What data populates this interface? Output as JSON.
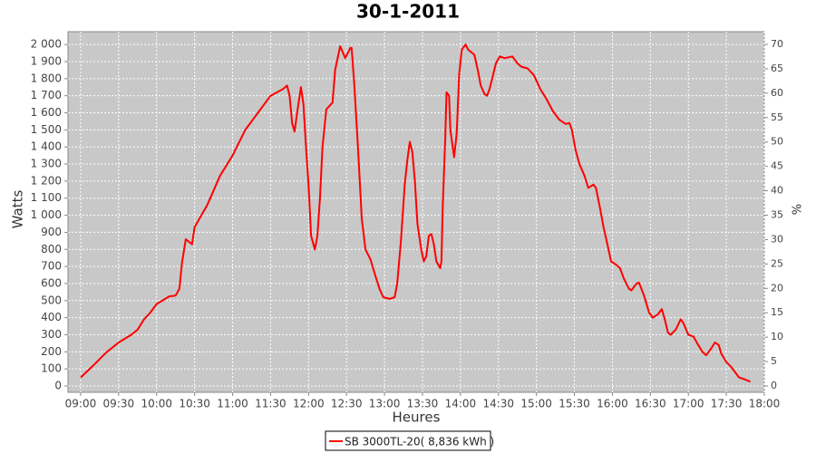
{
  "chart_data": {
    "type": "line",
    "title": "30-1-2011",
    "x_label": "Heures",
    "y_label": "Watts",
    "y2_label": "%",
    "xlim": [
      "08:50",
      "18:00"
    ],
    "xticks": [
      "09:00",
      "09:30",
      "10:00",
      "10:30",
      "11:00",
      "11:30",
      "12:00",
      "12:30",
      "13:00",
      "13:30",
      "14:00",
      "14:30",
      "15:00",
      "15:30",
      "16:00",
      "16:30",
      "17:00",
      "17:30",
      "18:00"
    ],
    "ylim": [
      -37,
      2075
    ],
    "yticks": [
      0,
      100,
      200,
      300,
      400,
      500,
      600,
      700,
      800,
      900,
      {
        "value": 1000,
        "label": "1 000"
      },
      {
        "value": 1100,
        "label": "1 100"
      },
      {
        "value": 1200,
        "label": "1 200"
      },
      {
        "value": 1300,
        "label": "1 300"
      },
      {
        "value": 1400,
        "label": "1 400"
      },
      {
        "value": 1500,
        "label": "1 500"
      },
      {
        "value": 1600,
        "label": "1 600"
      },
      {
        "value": 1700,
        "label": "1 700"
      },
      {
        "value": 1800,
        "label": "1 800"
      },
      {
        "value": 1900,
        "label": "1 900"
      },
      {
        "value": 2000,
        "label": "2 000"
      }
    ],
    "y2lim": [
      -1.3,
      72.6
    ],
    "y2ticks": [
      0,
      5,
      10,
      15,
      20,
      25,
      30,
      35,
      40,
      45,
      50,
      55,
      60,
      65,
      70
    ],
    "grid": true,
    "legend": "bottom",
    "x": [
      "09:00",
      "09:10",
      "09:20",
      "09:30",
      "09:40",
      "09:45",
      "09:50",
      "09:55",
      "10:00",
      "10:10",
      "10:15",
      "10:18",
      "10:20",
      "10:23",
      "10:28",
      "10:30",
      "10:40",
      "10:50",
      "11:00",
      "11:10",
      "11:20",
      "11:30",
      "11:40",
      "11:43",
      "11:45",
      "11:47",
      "11:49",
      "11:51",
      "11:54",
      "11:56",
      "11:58",
      "12:00",
      "12:02",
      "12:05",
      "12:07",
      "12:09",
      "12:11",
      "12:14",
      "12:19",
      "12:21",
      "12:25",
      "12:29",
      "12:33",
      "12:34",
      "12:36",
      "12:39",
      "12:42",
      "12:45",
      "12:49",
      "12:53",
      "12:56",
      "12:59",
      "13:04",
      "13:08",
      "13:10",
      "13:13",
      "13:16",
      "13:18",
      "13:20",
      "13:22",
      "13:24",
      "13:26",
      "13:29",
      "13:31",
      "13:33",
      "13:35",
      "13:37",
      "13:39",
      "13:41",
      "13:44",
      "13:45",
      "13:46",
      "13:48",
      "13:49",
      "13:51",
      "13:52",
      "13:55",
      "13:57",
      "13:59",
      "14:01",
      "14:04",
      "14:06",
      "14:11",
      "14:14",
      "14:16",
      "14:19",
      "14:21",
      "14:23",
      "14:26",
      "14:28",
      "14:31",
      "14:35",
      "14:41",
      "14:45",
      "14:48",
      "14:53",
      "14:58",
      "15:03",
      "15:08",
      "15:13",
      "15:18",
      "15:23",
      "15:26",
      "15:28",
      "15:31",
      "15:34",
      "15:38",
      "15:41",
      "15:45",
      "15:47",
      "15:50",
      "15:53",
      "15:56",
      "15:59",
      "16:03",
      "16:06",
      "16:09",
      "16:13",
      "16:15",
      "16:19",
      "16:21",
      "16:25",
      "16:29",
      "16:32",
      "16:36",
      "16:39",
      "16:41",
      "16:44",
      "16:46",
      "16:50",
      "16:54",
      "16:56",
      "17:00",
      "17:04",
      "17:07",
      "17:11",
      "17:14",
      "17:18",
      "17:21",
      "17:24",
      "17:26",
      "17:30",
      "17:34",
      "17:36",
      "17:40",
      "17:44",
      "17:49"
    ],
    "series": [
      {
        "name": "SB 3000TL-20( 8,836 kWh )",
        "color": "#ff0000",
        "values": [
          50,
          120,
          195,
          255,
          300,
          330,
          390,
          430,
          480,
          525,
          530,
          570,
          720,
          860,
          830,
          930,
          1060,
          1230,
          1350,
          1500,
          1600,
          1700,
          1740,
          1760,
          1700,
          1540,
          1490,
          1600,
          1750,
          1650,
          1400,
          1180,
          880,
          800,
          880,
          1100,
          1400,
          1620,
          1660,
          1850,
          1990,
          1920,
          1980,
          1980,
          1780,
          1400,
          980,
          800,
          740,
          640,
          570,
          520,
          510,
          520,
          600,
          850,
          1180,
          1320,
          1430,
          1370,
          1200,
          950,
          800,
          730,
          760,
          880,
          890,
          830,
          730,
          690,
          730,
          1050,
          1450,
          1720,
          1700,
          1500,
          1340,
          1480,
          1830,
          1970,
          2000,
          1970,
          1940,
          1840,
          1760,
          1710,
          1700,
          1740,
          1830,
          1890,
          1930,
          1920,
          1930,
          1890,
          1870,
          1860,
          1820,
          1740,
          1680,
          1610,
          1560,
          1535,
          1540,
          1500,
          1380,
          1300,
          1230,
          1160,
          1180,
          1160,
          1050,
          930,
          830,
          730,
          710,
          690,
          630,
          570,
          560,
          600,
          605,
          530,
          430,
          400,
          420,
          450,
          400,
          310,
          300,
          330,
          390,
          370,
          300,
          290,
          250,
          200,
          180,
          220,
          255,
          240,
          190,
          140,
          110,
          90,
          50,
          40,
          25
        ]
      }
    ]
  }
}
